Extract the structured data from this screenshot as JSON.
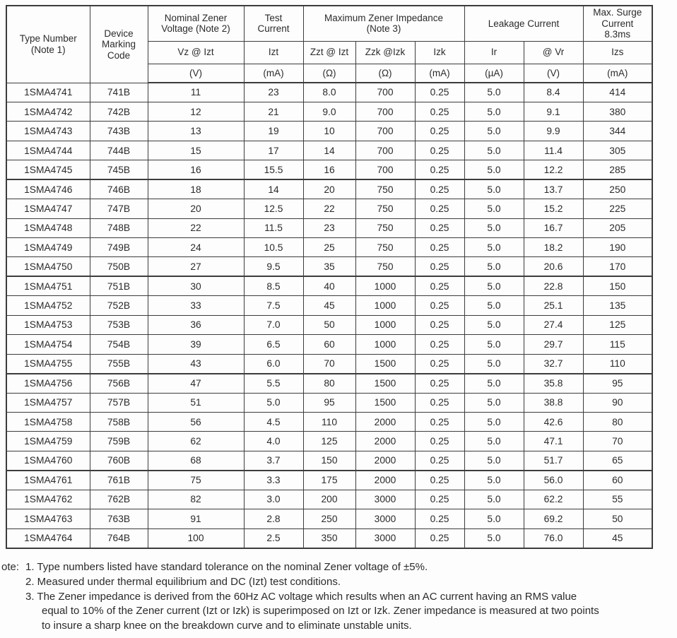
{
  "page": {
    "background": "#fdfdfd",
    "text_color": "#2b2b2b",
    "border_color": "#3c3c3c"
  },
  "table": {
    "header": {
      "type_number": "Type Number\n(Note 1)",
      "device_marking": "Device\nMarking\nCode",
      "nominal_zener_voltage": "Nominal Zener\nVoltage (Note 2)",
      "test_current": "Test\nCurrent",
      "max_zener_impedance": "Maximum Zener Impedance\n(Note 3)",
      "leakage_current": "Leakage Current",
      "max_surge_current": "Max. Surge\nCurrent\n8.3ms",
      "sub": [
        "Vz @ Izt",
        "Izt",
        "Zzt @ Izt",
        "Zzk @Izk",
        "Izk",
        "Ir",
        "@ Vr",
        "Izs"
      ],
      "units": [
        "(V)",
        "(mA)",
        "(Ω)",
        "(Ω)",
        "(mA)",
        "(µA)",
        "(V)",
        "(mA)"
      ]
    },
    "group_size": 5,
    "rows": [
      [
        "1SMA4741",
        "741B",
        "11",
        "23",
        "8.0",
        "700",
        "0.25",
        "5.0",
        "8.4",
        "414"
      ],
      [
        "1SMA4742",
        "742B",
        "12",
        "21",
        "9.0",
        "700",
        "0.25",
        "5.0",
        "9.1",
        "380"
      ],
      [
        "1SMA4743",
        "743B",
        "13",
        "19",
        "10",
        "700",
        "0.25",
        "5.0",
        "9.9",
        "344"
      ],
      [
        "1SMA4744",
        "744B",
        "15",
        "17",
        "14",
        "700",
        "0.25",
        "5.0",
        "11.4",
        "305"
      ],
      [
        "1SMA4745",
        "745B",
        "16",
        "15.5",
        "16",
        "700",
        "0.25",
        "5.0",
        "12.2",
        "285"
      ],
      [
        "1SMA4746",
        "746B",
        "18",
        "14",
        "20",
        "750",
        "0.25",
        "5.0",
        "13.7",
        "250"
      ],
      [
        "1SMA4747",
        "747B",
        "20",
        "12.5",
        "22",
        "750",
        "0.25",
        "5.0",
        "15.2",
        "225"
      ],
      [
        "1SMA4748",
        "748B",
        "22",
        "11.5",
        "23",
        "750",
        "0.25",
        "5.0",
        "16.7",
        "205"
      ],
      [
        "1SMA4749",
        "749B",
        "24",
        "10.5",
        "25",
        "750",
        "0.25",
        "5.0",
        "18.2",
        "190"
      ],
      [
        "1SMA4750",
        "750B",
        "27",
        "9.5",
        "35",
        "750",
        "0.25",
        "5.0",
        "20.6",
        "170"
      ],
      [
        "1SMA4751",
        "751B",
        "30",
        "8.5",
        "40",
        "1000",
        "0.25",
        "5.0",
        "22.8",
        "150"
      ],
      [
        "1SMA4752",
        "752B",
        "33",
        "7.5",
        "45",
        "1000",
        "0.25",
        "5.0",
        "25.1",
        "135"
      ],
      [
        "1SMA4753",
        "753B",
        "36",
        "7.0",
        "50",
        "1000",
        "0.25",
        "5.0",
        "27.4",
        "125"
      ],
      [
        "1SMA4754",
        "754B",
        "39",
        "6.5",
        "60",
        "1000",
        "0.25",
        "5.0",
        "29.7",
        "115"
      ],
      [
        "1SMA4755",
        "755B",
        "43",
        "6.0",
        "70",
        "1500",
        "0.25",
        "5.0",
        "32.7",
        "110"
      ],
      [
        "1SMA4756",
        "756B",
        "47",
        "5.5",
        "80",
        "1500",
        "0.25",
        "5.0",
        "35.8",
        "95"
      ],
      [
        "1SMA4757",
        "757B",
        "51",
        "5.0",
        "95",
        "1500",
        "0.25",
        "5.0",
        "38.8",
        "90"
      ],
      [
        "1SMA4758",
        "758B",
        "56",
        "4.5",
        "110",
        "2000",
        "0.25",
        "5.0",
        "42.6",
        "80"
      ],
      [
        "1SMA4759",
        "759B",
        "62",
        "4.0",
        "125",
        "2000",
        "0.25",
        "5.0",
        "47.1",
        "70"
      ],
      [
        "1SMA4760",
        "760B",
        "68",
        "3.7",
        "150",
        "2000",
        "0.25",
        "5.0",
        "51.7",
        "65"
      ],
      [
        "1SMA4761",
        "761B",
        "75",
        "3.3",
        "175",
        "2000",
        "0.25",
        "5.0",
        "56.0",
        "60"
      ],
      [
        "1SMA4762",
        "762B",
        "82",
        "3.0",
        "200",
        "3000",
        "0.25",
        "5.0",
        "62.2",
        "55"
      ],
      [
        "1SMA4763",
        "763B",
        "91",
        "2.8",
        "250",
        "3000",
        "0.25",
        "5.0",
        "69.2",
        "50"
      ],
      [
        "1SMA4764",
        "764B",
        "100",
        "2.5",
        "350",
        "3000",
        "0.25",
        "5.0",
        "76.0",
        "45"
      ]
    ]
  },
  "notes": {
    "label": "ote:",
    "items": [
      "1. Type numbers listed have standard tolerance on the nominal Zener voltage of ±5%.",
      "2. Measured under thermal equilibrium and DC (Izt) test conditions.",
      "3. The Zener impedance is derived from the 60Hz AC voltage which results when an AC current having an RMS value\nequal to 10% of the Zener current (Izt or Izk) is superimposed on Izt or Izk. Zener impedance is measured at two points\nto insure a sharp knee on the breakdown curve and to eliminate unstable units."
    ]
  }
}
